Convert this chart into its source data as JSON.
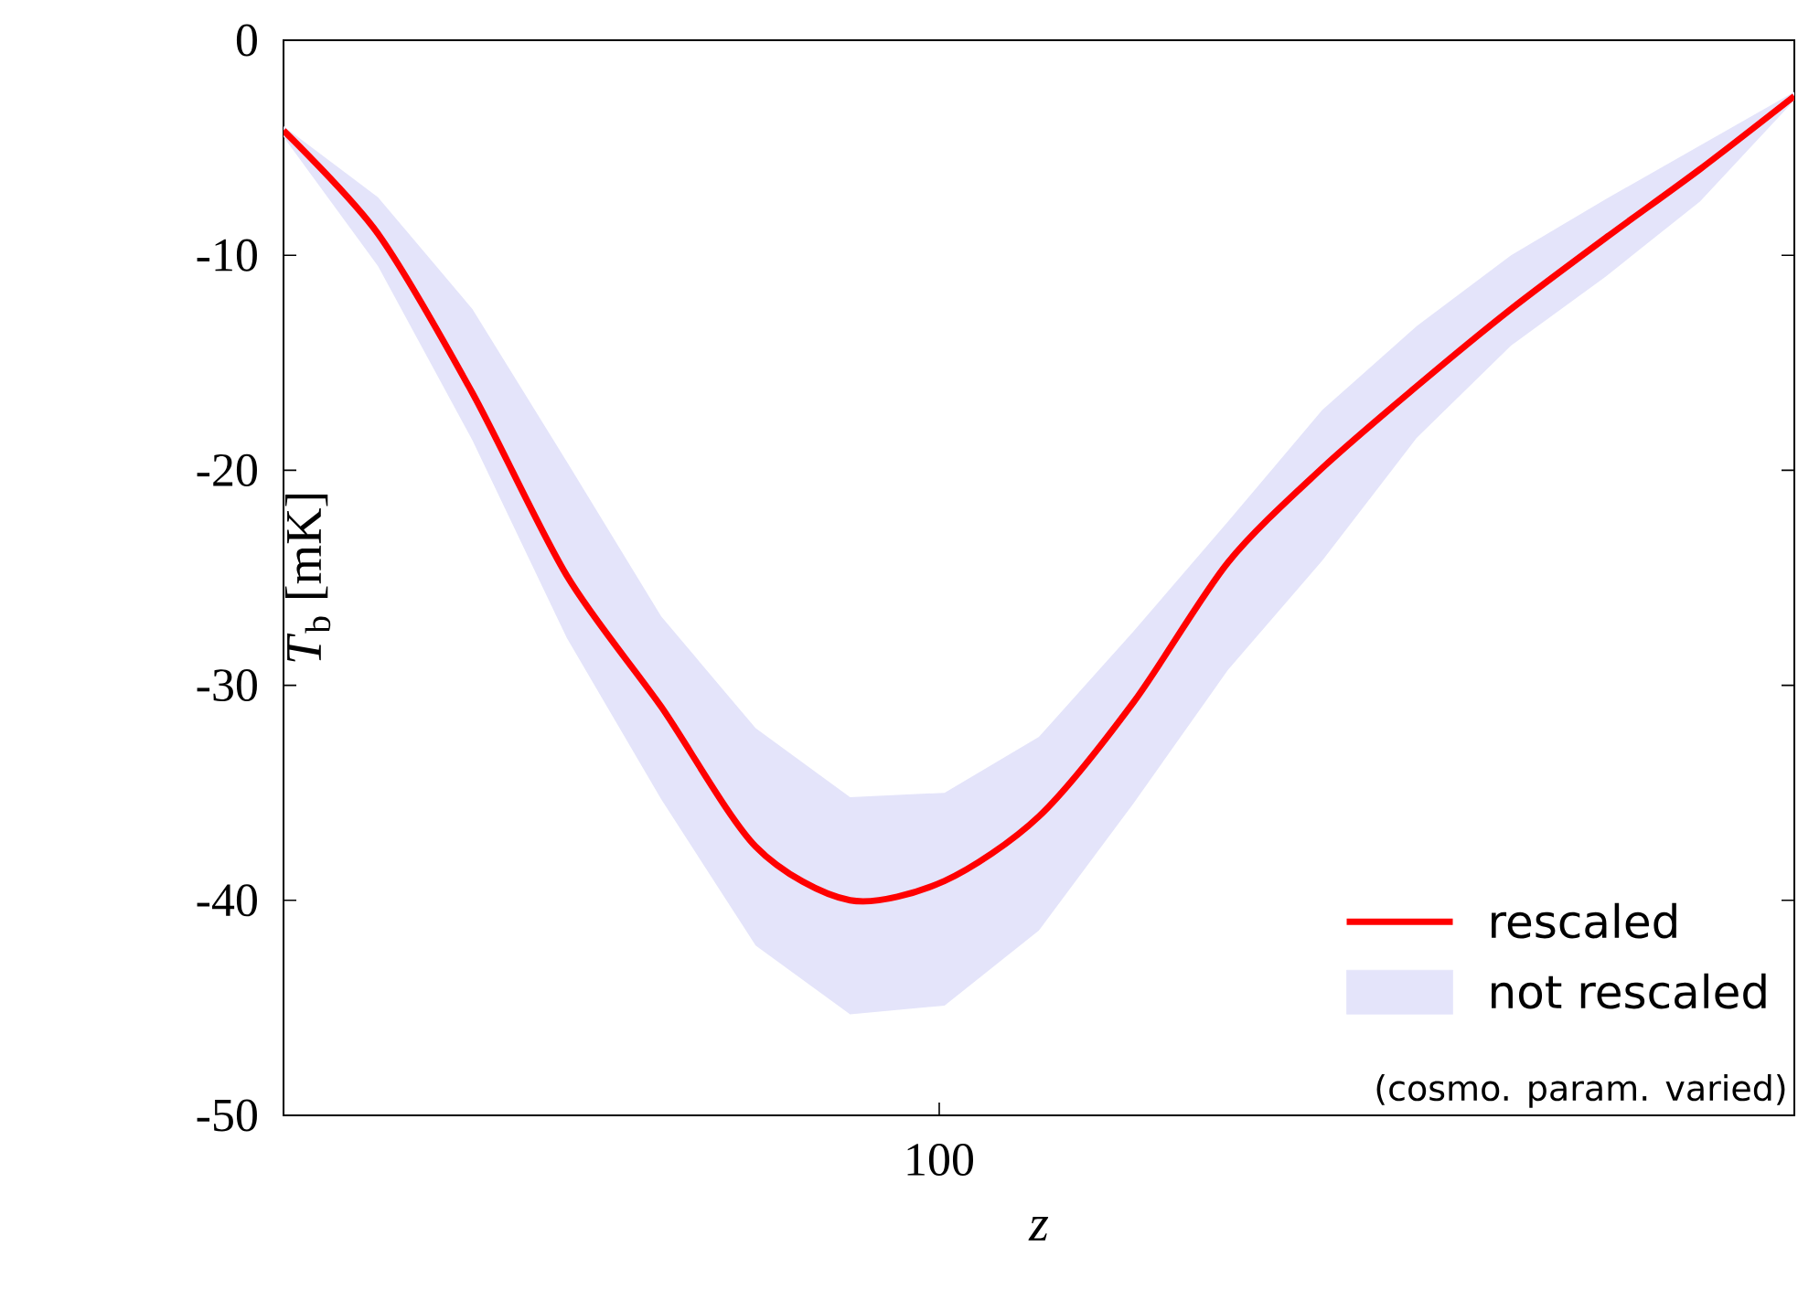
{
  "chart_data": {
    "type": "line",
    "xlabel": "z",
    "ylabel": "*T*$_{b}$ [mK]",
    "categories": [
      null,
      null,
      null,
      null,
      null,
      null,
      null,
      null,
      null,
      null,
      null,
      null,
      null,
      null,
      null,
      null,
      null
    ],
    "ylim": [
      -50,
      0
    ],
    "yticks": [
      -50,
      -40,
      -30,
      -20,
      -10,
      0
    ],
    "legend": "bottom right",
    "series": [
      {
        "name": "rescaled",
        "color": "#ff0000",
        "values": [
          -4.2,
          -9.0,
          -16.4,
          -24.9,
          -31.0,
          -37.5,
          -40.0,
          -39.1,
          -36.1,
          -30.8,
          -24.3,
          -19.9,
          -16.1,
          -12.5,
          -9.2,
          -6.0,
          -2.6
        ]
      },
      {
        "name": "not rescaled",
        "color": "#e4e4fa",
        "values": [
          null,
          null,
          null,
          null,
          null,
          null,
          null,
          null,
          null,
          null,
          null,
          null,
          null,
          null,
          null,
          null,
          null
        ],
        "upper": [
          -4.0,
          -7.3,
          -12.5,
          -19.6,
          -26.8,
          -32.0,
          -35.2,
          -35.0,
          -32.4,
          -27.5,
          -22.4,
          -17.2,
          -13.3,
          -10.0,
          -7.4,
          -4.9,
          -2.4
        ],
        "lower": [
          -4.5,
          -10.5,
          -18.6,
          -27.8,
          -35.3,
          -42.1,
          -45.3,
          -44.9,
          -41.4,
          -35.5,
          -29.3,
          -24.2,
          -18.5,
          -14.2,
          -11.0,
          -7.5,
          -2.8
        ]
      }
    ],
    "annotations": [
      "100",
      "(cosmo. param. varied)"
    ]
  }
}
